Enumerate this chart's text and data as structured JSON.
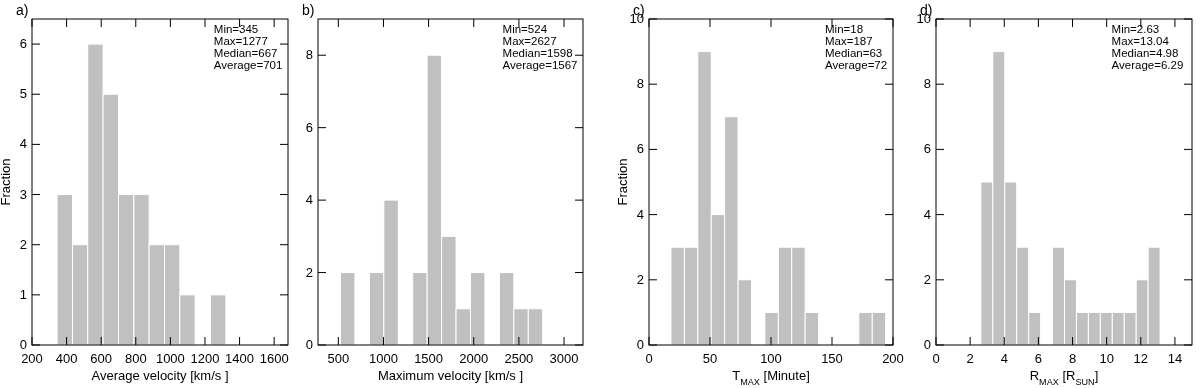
{
  "chart_data": [
    {
      "type": "histogram",
      "title": "a)",
      "xlabel": "Average velocity [km/s ]",
      "ylabel": "Fraction",
      "bins": [
        345,
        434,
        522,
        611,
        700,
        789,
        877,
        966,
        1055,
        1143,
        1232,
        1321
      ],
      "values": [
        3,
        2,
        6,
        5,
        3,
        3,
        2,
        2,
        1,
        0,
        1
      ],
      "color": "#c0c0c0",
      "xlim": [
        200,
        1680
      ],
      "xticks": [
        200,
        400,
        600,
        800,
        1000,
        1200,
        1400,
        1600
      ],
      "ylim": [
        0,
        6.5
      ],
      "yticks": [
        0,
        1,
        2,
        3,
        4,
        5,
        6
      ],
      "annotations": [
        "Min=345",
        "Max=1277",
        "Median=667",
        "Average=701"
      ]
    },
    {
      "type": "histogram",
      "title": "b)",
      "xlabel": "Maximum velocity [km/s ]",
      "bins": [
        524,
        684,
        844,
        1004,
        1164,
        1324,
        1484,
        1644,
        1804,
        1964,
        2124,
        2284,
        2444,
        2604,
        2764
      ],
      "values": [
        2,
        0,
        2,
        4,
        0,
        2,
        8,
        3,
        1,
        2,
        0,
        2,
        1,
        1
      ],
      "color": "#c0c0c0",
      "xlim": [
        275,
        3210
      ],
      "xticks": [
        500,
        1000,
        1500,
        2000,
        2500,
        3000
      ],
      "ylim": [
        0,
        9
      ],
      "yticks": [
        0,
        2,
        4,
        6,
        8
      ],
      "annotations": [
        "Min=524",
        "Max=2627",
        "Median=1598",
        "Average=1567"
      ]
    },
    {
      "type": "histogram",
      "title": "c)",
      "xlabel": "T$_{MAX}$ [Minute]",
      "ylabel": "Fraction",
      "bins": [
        18,
        29,
        40,
        51,
        62,
        73,
        84,
        95,
        106,
        117,
        128,
        139,
        150,
        161,
        172,
        183,
        194
      ],
      "values": [
        3,
        3,
        9,
        4,
        7,
        2,
        0,
        1,
        3,
        3,
        1,
        0,
        0,
        0,
        1,
        1
      ],
      "color": "#c0c0c0",
      "xlim": [
        0,
        200
      ],
      "xticks": [
        0,
        50,
        100,
        150,
        200
      ],
      "ylim": [
        0,
        10
      ],
      "yticks": [
        0,
        2,
        4,
        6,
        8,
        10
      ],
      "annotations": [
        "Min=18",
        "Max=187",
        "Median=63",
        "Average=72"
      ]
    },
    {
      "type": "histogram",
      "title": "d)",
      "xlabel": "R$_{MAX}$ [R$_{SUN}$]",
      "bins": [
        2.63,
        3.33,
        4.03,
        4.73,
        5.43,
        6.13,
        6.83,
        7.53,
        8.23,
        8.93,
        9.63,
        10.33,
        11.03,
        11.73,
        12.43,
        13.13
      ],
      "values": [
        5,
        9,
        5,
        3,
        1,
        0,
        3,
        2,
        1,
        1,
        1,
        1,
        1,
        2,
        3
      ],
      "color": "#c0c0c0",
      "xlim": [
        0,
        15
      ],
      "xticks": [
        0,
        2,
        4,
        6,
        8,
        10,
        12,
        14
      ],
      "ylim": [
        0,
        10
      ],
      "yticks": [
        0,
        2,
        4,
        6,
        8,
        10
      ],
      "annotations": [
        "Min=2.63",
        "Max=13.04",
        "Median=4.98",
        "Average=6.29"
      ]
    }
  ]
}
